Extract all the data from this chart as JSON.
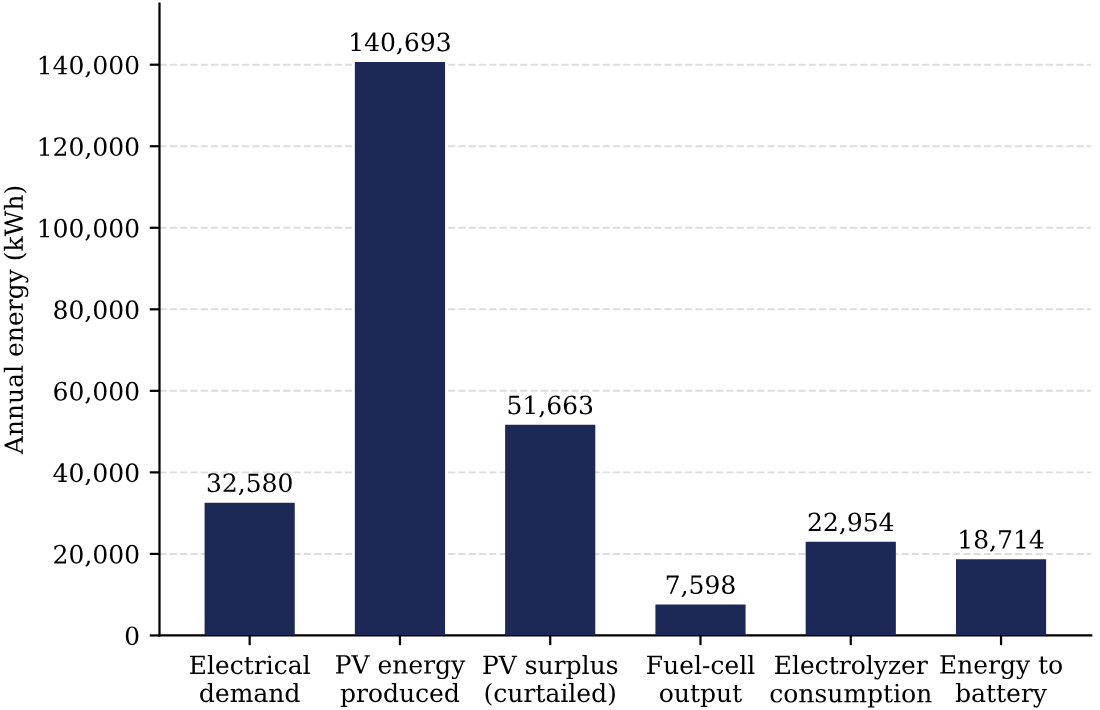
{
  "chart_data": {
    "type": "bar",
    "ylabel": "Annual energy (kWh)",
    "categories": [
      "Electrical\ndemand",
      "PV energy\nproduced",
      "PV surplus\n(curtailed)",
      "Fuel-cell\noutput",
      "Electrolyzer\nconsumption",
      "Energy to\nbattery"
    ],
    "values": [
      32580,
      140693,
      51663,
      7598,
      22954,
      18714
    ],
    "color": "#1c2855",
    "ylim": [
      0,
      155000
    ],
    "yticks": [
      {
        "value": 0,
        "label": "0"
      },
      {
        "value": 20000,
        "label": "20,000"
      },
      {
        "value": 40000,
        "label": "40,000"
      },
      {
        "value": 60000,
        "label": "60,000"
      },
      {
        "value": 80000,
        "label": "80,000"
      },
      {
        "value": 100000,
        "label": "100,000"
      },
      {
        "value": 120000,
        "label": "120,000"
      },
      {
        "value": 140000,
        "label": "140,000"
      }
    ],
    "value_labels": [
      "32,580",
      "140,693",
      "51,663",
      "7,598",
      "22,954",
      "18,714"
    ],
    "grid": "y"
  }
}
